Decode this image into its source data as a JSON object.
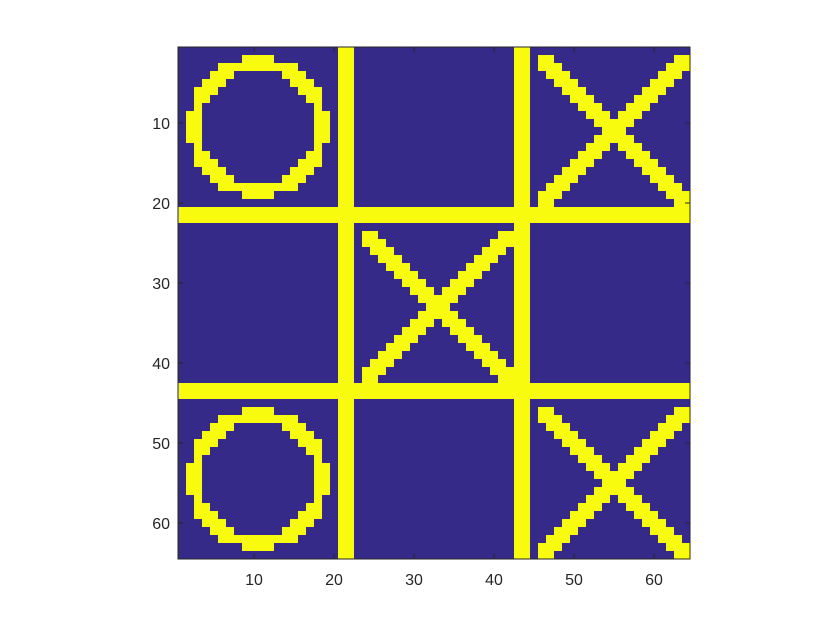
{
  "game": {
    "type": "tic-tac-toe",
    "image_size": [
      64,
      64
    ],
    "colors": {
      "background": "#352A87",
      "foreground": "#F9FB0E",
      "axis": "#262626"
    },
    "board": [
      [
        "O",
        "",
        "X"
      ],
      [
        "",
        "X",
        ""
      ],
      [
        "O",
        "",
        "X"
      ]
    ]
  },
  "chart_data": {
    "type": "heatmap",
    "title": "",
    "xlabel": "",
    "ylabel": "",
    "xlim": [
      0.5,
      64.5
    ],
    "ylim": [
      0.5,
      64.5
    ],
    "y_reversed": true,
    "grid": false,
    "x_ticks": [
      10,
      20,
      30,
      40,
      50,
      60
    ],
    "y_ticks": [
      10,
      20,
      30,
      40,
      50,
      60
    ],
    "x_tick_labels": [
      "10",
      "20",
      "30",
      "40",
      "50",
      "60"
    ],
    "y_tick_labels": [
      "10",
      "20",
      "30",
      "40",
      "50",
      "60"
    ],
    "grid_lines": {
      "vertical_columns": [
        [
          21,
          22
        ],
        [
          43,
          44
        ]
      ],
      "horizontal_rows": [
        [
          21,
          22
        ],
        [
          43,
          44
        ]
      ]
    }
  }
}
